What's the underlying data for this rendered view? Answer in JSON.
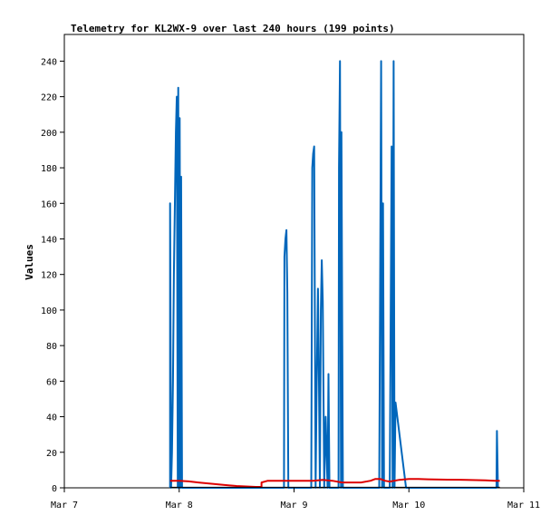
{
  "chart_data": {
    "type": "line",
    "title": "Telemetry for KL2WX-9 over last 240 hours (199 points)",
    "xlabel": "",
    "ylabel": "Values",
    "x_ticks": [
      "Mar 7",
      "Mar 8",
      "Mar 9",
      "Mar 10",
      "Mar 11"
    ],
    "x_tick_hours": [
      0,
      24,
      48,
      72,
      96
    ],
    "xlim_hours": [
      0,
      96
    ],
    "y_ticks": [
      0,
      20,
      40,
      60,
      80,
      100,
      120,
      140,
      160,
      180,
      200,
      220,
      240
    ],
    "ylim": [
      0,
      255
    ],
    "grid": false,
    "legend": "none",
    "series": [
      {
        "color": "#0066bb",
        "points": [
          [
            22.1,
            0
          ],
          [
            22.1,
            160
          ],
          [
            22.3,
            0
          ],
          [
            22.5,
            20
          ],
          [
            22.7,
            60
          ],
          [
            22.9,
            120
          ],
          [
            23.1,
            160
          ],
          [
            23.3,
            200
          ],
          [
            23.5,
            220
          ],
          [
            23.7,
            0
          ],
          [
            23.8,
            225
          ],
          [
            24.0,
            0
          ],
          [
            24.1,
            208
          ],
          [
            24.3,
            0
          ],
          [
            24.4,
            175
          ],
          [
            24.6,
            0
          ],
          [
            45.9,
            0
          ],
          [
            46.0,
            130
          ],
          [
            46.2,
            140
          ],
          [
            46.4,
            145
          ],
          [
            46.6,
            110
          ],
          [
            46.8,
            0
          ],
          [
            51.6,
            0
          ],
          [
            51.8,
            180
          ],
          [
            52.0,
            188
          ],
          [
            52.2,
            192
          ],
          [
            52.5,
            0
          ],
          [
            52.7,
            50
          ],
          [
            53.0,
            112
          ],
          [
            53.2,
            60
          ],
          [
            53.4,
            0
          ],
          [
            53.6,
            100
          ],
          [
            53.8,
            128
          ],
          [
            54.0,
            105
          ],
          [
            54.3,
            0
          ],
          [
            54.6,
            40
          ],
          [
            55.0,
            0
          ],
          [
            55.2,
            64
          ],
          [
            55.4,
            0
          ],
          [
            57.3,
            0
          ],
          [
            57.4,
            180
          ],
          [
            57.6,
            240
          ],
          [
            57.8,
            0
          ],
          [
            57.9,
            200
          ],
          [
            58.2,
            0
          ],
          [
            65.8,
            0
          ],
          [
            66.0,
            125
          ],
          [
            66.2,
            240
          ],
          [
            66.4,
            0
          ],
          [
            66.6,
            160
          ],
          [
            66.8,
            0
          ],
          [
            68.0,
            0
          ],
          [
            68.2,
            100
          ],
          [
            68.4,
            192
          ],
          [
            68.6,
            0
          ],
          [
            68.8,
            240
          ],
          [
            69.0,
            0
          ],
          [
            69.2,
            48
          ],
          [
            71.4,
            0
          ],
          [
            90.3,
            0
          ],
          [
            90.4,
            32
          ],
          [
            90.6,
            0
          ]
        ]
      },
      {
        "color": "#dd0000",
        "points": [
          [
            22.1,
            4
          ],
          [
            24.0,
            4
          ],
          [
            26.0,
            3.6
          ],
          [
            28.0,
            3
          ],
          [
            30.0,
            2.5
          ],
          [
            32.0,
            2
          ],
          [
            34.0,
            1.5
          ],
          [
            36.0,
            1
          ],
          [
            40.0,
            0.5
          ],
          [
            41.2,
            0.5
          ],
          [
            41.2,
            3
          ],
          [
            42.5,
            4
          ],
          [
            46.0,
            4
          ],
          [
            50.0,
            4
          ],
          [
            52.0,
            4
          ],
          [
            54.0,
            4.5
          ],
          [
            56.0,
            4
          ],
          [
            58.0,
            3
          ],
          [
            62.0,
            3
          ],
          [
            64.0,
            4
          ],
          [
            65.0,
            5
          ],
          [
            66.0,
            5
          ],
          [
            67.0,
            4
          ],
          [
            68.0,
            3.5
          ],
          [
            70.0,
            4.5
          ],
          [
            72.0,
            5
          ],
          [
            74.0,
            5
          ],
          [
            76.0,
            4.8
          ],
          [
            80.0,
            4.6
          ],
          [
            84.0,
            4.5
          ],
          [
            88.0,
            4.2
          ],
          [
            90.0,
            4
          ],
          [
            91.0,
            4
          ]
        ]
      },
      {
        "color": "#000000",
        "points": [
          [
            22.1,
            0.3
          ],
          [
            91.0,
            0.3
          ]
        ]
      }
    ]
  }
}
